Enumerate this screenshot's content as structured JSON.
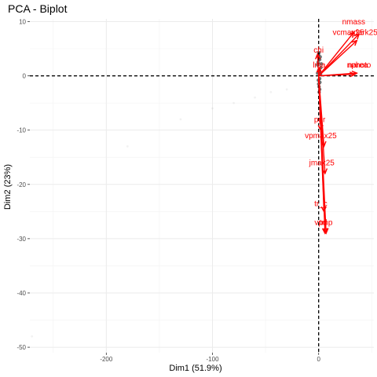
{
  "chart_data": {
    "type": "scatter",
    "title": "PCA - Biplot",
    "xlabel": "Dim1 (51.9%)",
    "ylabel": "Dim2 (23%)",
    "xlim": [
      -272,
      52
    ],
    "ylim": [
      -51,
      10.5
    ],
    "x_ticks": [
      -200,
      -100,
      0
    ],
    "y_ticks": [
      10,
      0,
      -10,
      -20,
      -30,
      -40,
      -50
    ],
    "grid": true,
    "reference_lines": {
      "x": 0,
      "y": 0,
      "style": "dashed"
    },
    "points_description": "dense cluster of individuals near the origin with a faint spread to the left",
    "points": [
      [
        0,
        4
      ],
      [
        1,
        3
      ],
      [
        -1,
        2
      ],
      [
        0,
        1
      ],
      [
        2,
        1.5
      ],
      [
        -1,
        0.5
      ],
      [
        1,
        -0.5
      ],
      [
        0,
        -1.5
      ],
      [
        1,
        -2.5
      ],
      [
        0.5,
        -3
      ],
      [
        -0.5,
        2.5
      ],
      [
        1.5,
        3.5
      ],
      [
        0.2,
        4.3
      ],
      [
        -0.8,
        3.6
      ],
      [
        2.5,
        2.2
      ],
      [
        0.8,
        0.8
      ],
      [
        1.2,
        -1.2
      ],
      [
        0.4,
        -2
      ],
      [
        -0.3,
        -0.8
      ],
      [
        1.8,
        0.3
      ],
      [
        -30,
        -2.5
      ],
      [
        -45,
        -3
      ],
      [
        -60,
        -4
      ],
      [
        -80,
        -5
      ],
      [
        -100,
        -6
      ],
      [
        -130,
        -8
      ],
      [
        -180,
        -13
      ],
      [
        -270,
        -48
      ]
    ],
    "arrow_color": "#ff0000",
    "variables": [
      {
        "label": "nmass",
        "x": 36,
        "y": 6.5,
        "label_x": 33,
        "label_y": 9.5
      },
      {
        "label": "vcmax25",
        "x": 33,
        "y": 8.0,
        "label_x": 28,
        "label_y": 7.5
      },
      {
        "label": "rdark25",
        "x": 38,
        "y": 7.7,
        "label_x": 43,
        "label_y": 7.5
      },
      {
        "label": "narea",
        "x": 34,
        "y": 0.3,
        "label_x": 37,
        "label_y": 1.5
      },
      {
        "label": "nphoto",
        "x": 36,
        "y": 0.5,
        "label_x": 38,
        "label_y": 1.5
      },
      {
        "label": "chi",
        "x": -1,
        "y": 4,
        "label_x": 0,
        "label_y": 4.3
      },
      {
        "label": "lma",
        "x": 1,
        "y": 1.5,
        "label_x": 0.5,
        "label_y": 1.5
      },
      {
        "label": "pgr",
        "x": 2,
        "y": -10,
        "label_x": 1,
        "label_y": -8.5
      },
      {
        "label": "vpmax25",
        "x": 5,
        "y": -13,
        "label_x": 2,
        "label_y": -11.5
      },
      {
        "label": "jmax25",
        "x": 6,
        "y": -18,
        "label_x": 3,
        "label_y": -16.5
      },
      {
        "label": "tr_c",
        "x": 5,
        "y": -25,
        "label_x": 2,
        "label_y": -24
      },
      {
        "label": "vpd",
        "x": 7,
        "y": -29,
        "label_x": 2,
        "label_y": -27.5
      },
      {
        "label": "tmp",
        "x": 6,
        "y": -29,
        "label_x": 7,
        "label_y": -27.5
      }
    ]
  }
}
